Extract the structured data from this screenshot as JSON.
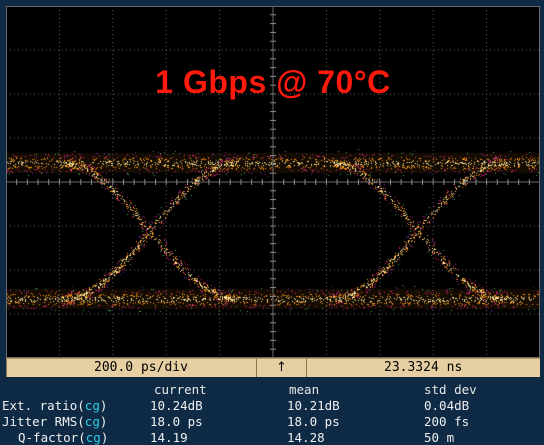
{
  "overlay": {
    "title": "1 Gbps @ 70°C",
    "title_color": "#ff1a0d"
  },
  "scale_bar": {
    "timebase": "200.0 ps/div",
    "trigger_marker": "↑",
    "position": "23.3324 ns"
  },
  "measurements": {
    "headers": [
      "current",
      "mean",
      "std dev"
    ],
    "rows": [
      {
        "label": "Ext. ratio",
        "source": "cg",
        "current": "10.24dB",
        "mean": "10.21dB",
        "std_dev": "0.04dB"
      },
      {
        "label": "Jitter RMS",
        "source": "cg",
        "current": "18.0 ps",
        "mean": "18.0 ps",
        "std_dev": "200 fs"
      },
      {
        "label": "Q-factor",
        "source": "cg",
        "current": "14.19",
        "mean": "14.28",
        "std_dev": "50 m"
      }
    ]
  },
  "colors": {
    "background": "#0e2a45",
    "screen": "#000000",
    "scale_bar": "#e6cfa2",
    "trace_core": "#ffe9a0",
    "trace_hot": "#ff9a1a",
    "trace_mid": "#d0207a",
    "trace_edge": "#5a2aa0",
    "source_tag": "#2fd0e8"
  }
}
